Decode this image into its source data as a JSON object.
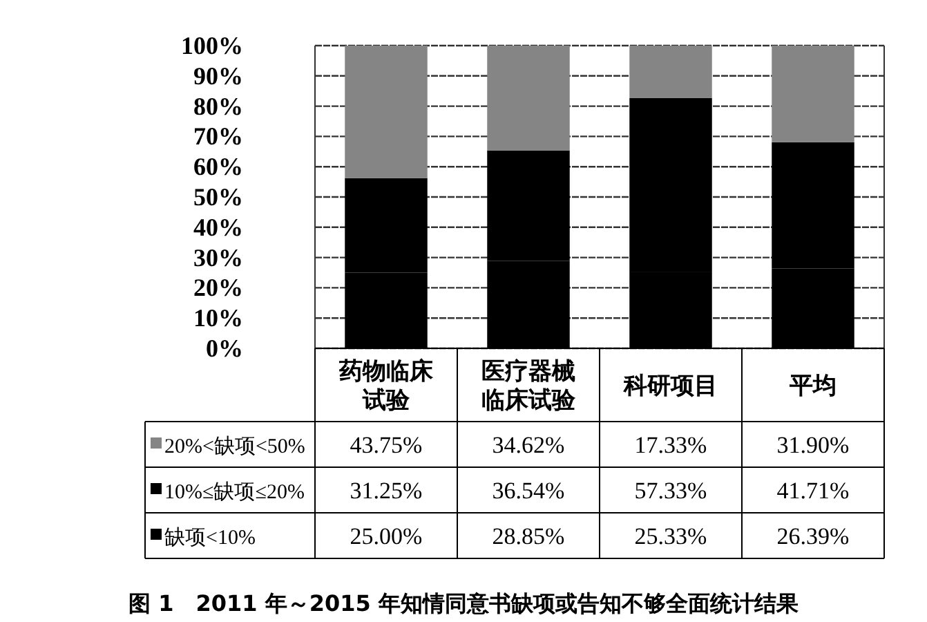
{
  "chart_data": {
    "type": "bar",
    "stacked": true,
    "title": "图 1　2011 年～2015 年知情同意书缺项或告知不够全面统计结果",
    "categories": [
      "药物临床试验",
      "医疗器械临床试验",
      "科研项目",
      "平均"
    ],
    "series": [
      {
        "name": "缺项<10%",
        "color": "#000000",
        "values": [
          25.0,
          28.85,
          25.33,
          26.39
        ],
        "value_labels": [
          "25.00%",
          "28.85%",
          "25.33%",
          "26.39%"
        ]
      },
      {
        "name": "10%≤缺项≤20%",
        "color": "#000000",
        "values": [
          31.25,
          36.54,
          57.33,
          41.71
        ],
        "value_labels": [
          "31.25%",
          "36.54%",
          "57.33%",
          "41.71%"
        ]
      },
      {
        "name": "20%<缺项<50%",
        "color": "#858585",
        "values": [
          43.75,
          34.62,
          17.33,
          31.9
        ],
        "value_labels": [
          "43.75%",
          "34.62%",
          "17.33%",
          "31.90%"
        ]
      }
    ],
    "ylim": [
      0,
      100
    ],
    "yticks": [
      {
        "value": 0,
        "label": "0%"
      },
      {
        "value": 10,
        "label": "10%"
      },
      {
        "value": 20,
        "label": "20%"
      },
      {
        "value": 30,
        "label": "30%"
      },
      {
        "value": 40,
        "label": "40%"
      },
      {
        "value": 50,
        "label": "50%"
      },
      {
        "value": 60,
        "label": "60%"
      },
      {
        "value": 70,
        "label": "70%"
      },
      {
        "value": 80,
        "label": "80%"
      },
      {
        "value": 90,
        "label": "90%"
      },
      {
        "value": 100,
        "label": "100%"
      }
    ],
    "grid": "y",
    "legend": "bottom left"
  }
}
